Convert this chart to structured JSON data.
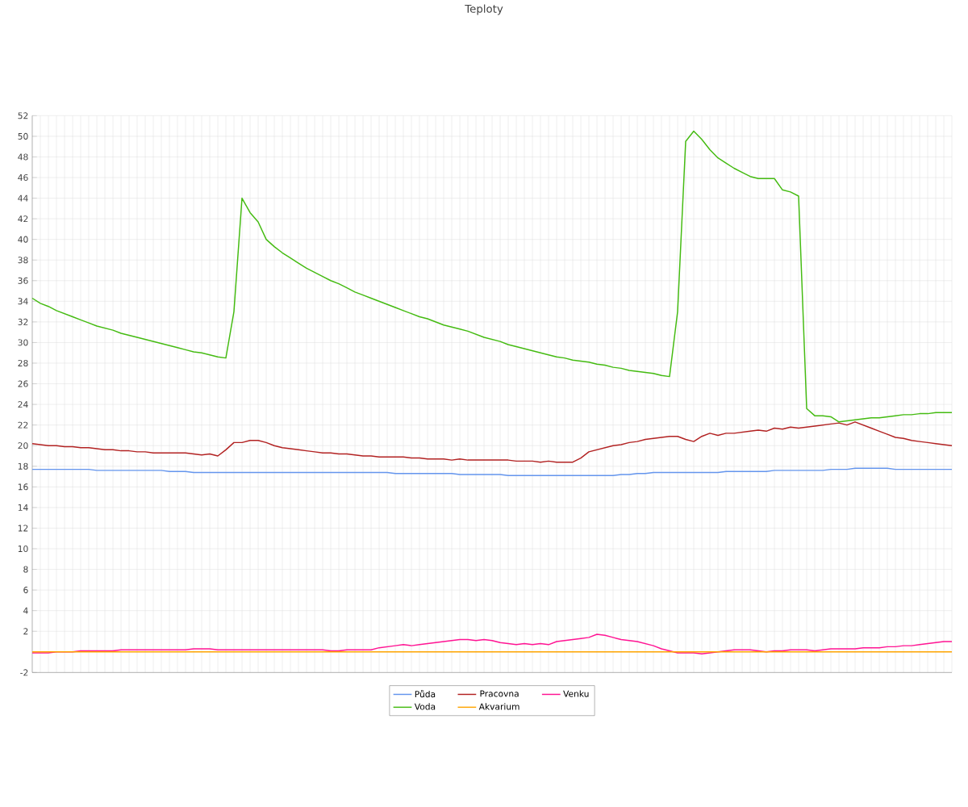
{
  "chart_data": {
    "type": "line",
    "title": "Teploty",
    "categories": [
      null,
      null,
      null,
      null,
      null,
      null,
      null,
      null,
      null,
      null,
      null,
      null,
      null,
      null,
      null,
      null,
      null,
      null,
      null,
      null,
      null,
      null,
      null,
      null,
      null,
      null,
      null,
      null,
      null,
      null,
      null,
      null,
      null,
      null,
      null,
      null,
      null,
      null,
      null,
      null,
      null,
      null,
      null,
      null,
      null,
      null,
      null,
      null,
      null,
      null,
      null,
      null,
      null,
      null,
      null,
      null,
      null,
      null,
      null,
      null,
      null,
      null,
      null,
      null,
      null,
      null,
      null,
      null,
      null,
      null,
      null,
      null,
      null,
      null,
      null,
      null,
      null,
      null,
      null,
      null,
      null,
      null,
      null,
      null,
      null,
      null,
      null,
      null,
      null,
      null,
      null,
      null,
      null,
      null,
      null,
      null,
      null,
      null,
      null,
      null,
      null,
      null,
      null,
      null,
      null,
      null,
      null,
      null,
      null,
      null,
      null,
      null,
      null,
      null,
      null
    ],
    "ylim": [
      -2,
      52
    ],
    "yticks": [
      -2,
      {
        "value": 0,
        "label": null
      },
      2,
      4,
      6,
      8,
      10,
      12,
      14,
      16,
      18,
      20,
      22,
      24,
      26,
      28,
      30,
      32,
      34,
      36,
      38,
      40,
      42,
      44,
      46,
      48,
      50,
      52
    ],
    "grid": true,
    "legend": "bottom",
    "series": [
      {
        "name": "Půda",
        "color": "#6495ed",
        "values": [
          17.7,
          17.7,
          17.7,
          17.7,
          17.7,
          17.7,
          17.7,
          17.7,
          17.6,
          17.6,
          17.6,
          17.6,
          17.6,
          17.6,
          17.6,
          17.6,
          17.6,
          17.5,
          17.5,
          17.5,
          17.4,
          17.4,
          17.4,
          17.4,
          17.4,
          17.4,
          17.4,
          17.4,
          17.4,
          17.4,
          17.4,
          17.4,
          17.4,
          17.4,
          17.4,
          17.4,
          17.4,
          17.4,
          17.4,
          17.4,
          17.4,
          17.4,
          17.4,
          17.4,
          17.4,
          17.3,
          17.3,
          17.3,
          17.3,
          17.3,
          17.3,
          17.3,
          17.3,
          17.2,
          17.2,
          17.2,
          17.2,
          17.2,
          17.2,
          17.1,
          17.1,
          17.1,
          17.1,
          17.1,
          17.1,
          17.1,
          17.1,
          17.1,
          17.1,
          17.1,
          17.1,
          17.1,
          17.1,
          17.2,
          17.2,
          17.3,
          17.3,
          17.4,
          17.4,
          17.4,
          17.4,
          17.4,
          17.4,
          17.4,
          17.4,
          17.4,
          17.5,
          17.5,
          17.5,
          17.5,
          17.5,
          17.5,
          17.6,
          17.6,
          17.6,
          17.6,
          17.6,
          17.6,
          17.6,
          17.7,
          17.7,
          17.7,
          17.8,
          17.8,
          17.8,
          17.8,
          17.8,
          17.7,
          17.7,
          17.7,
          17.7,
          17.7,
          17.7,
          17.7,
          17.7
        ]
      },
      {
        "name": "Pracovna",
        "color": "#b22222",
        "values": [
          20.2,
          20.1,
          20.0,
          20.0,
          19.9,
          19.9,
          19.8,
          19.8,
          19.7,
          19.6,
          19.6,
          19.5,
          19.5,
          19.4,
          19.4,
          19.3,
          19.3,
          19.3,
          19.3,
          19.3,
          19.2,
          19.1,
          19.2,
          19.0,
          19.6,
          20.3,
          20.3,
          20.5,
          20.5,
          20.3,
          20.0,
          19.8,
          19.7,
          19.6,
          19.5,
          19.4,
          19.3,
          19.3,
          19.2,
          19.2,
          19.1,
          19.0,
          19.0,
          18.9,
          18.9,
          18.9,
          18.9,
          18.8,
          18.8,
          18.7,
          18.7,
          18.7,
          18.6,
          18.7,
          18.6,
          18.6,
          18.6,
          18.6,
          18.6,
          18.6,
          18.5,
          18.5,
          18.5,
          18.4,
          18.5,
          18.4,
          18.4,
          18.4,
          18.8,
          19.4,
          19.6,
          19.8,
          20.0,
          20.1,
          20.3,
          20.4,
          20.6,
          20.7,
          20.8,
          20.9,
          20.9,
          20.6,
          20.4,
          20.9,
          21.2,
          21.0,
          21.2,
          21.2,
          21.3,
          21.4,
          21.5,
          21.4,
          21.7,
          21.6,
          21.8,
          21.7,
          21.8,
          21.9,
          22.0,
          22.1,
          22.2,
          22.0,
          22.3,
          22.0,
          21.7,
          21.4,
          21.1,
          20.8,
          20.7,
          20.5,
          20.4,
          20.3,
          20.2,
          20.1,
          20.0
        ]
      },
      {
        "name": "Venku",
        "color": "#ff1493",
        "values": [
          -0.1,
          -0.1,
          -0.1,
          0,
          0,
          0,
          0.1,
          0.1,
          0.1,
          0.1,
          0.1,
          0.2,
          0.2,
          0.2,
          0.2,
          0.2,
          0.2,
          0.2,
          0.2,
          0.2,
          0.3,
          0.3,
          0.3,
          0.2,
          0.2,
          0.2,
          0.2,
          0.2,
          0.2,
          0.2,
          0.2,
          0.2,
          0.2,
          0.2,
          0.2,
          0.2,
          0.2,
          0.1,
          0.1,
          0.2,
          0.2,
          0.2,
          0.2,
          0.4,
          0.5,
          0.6,
          0.7,
          0.6,
          0.7,
          0.8,
          0.9,
          1.0,
          1.1,
          1.2,
          1.2,
          1.1,
          1.2,
          1.1,
          0.9,
          0.8,
          0.7,
          0.8,
          0.7,
          0.8,
          0.7,
          1.0,
          1.1,
          1.2,
          1.3,
          1.4,
          1.7,
          1.6,
          1.4,
          1.2,
          1.1,
          1.0,
          0.8,
          0.6,
          0.3,
          0.1,
          -0.1,
          -0.1,
          -0.1,
          -0.2,
          -0.1,
          0.0,
          0.1,
          0.2,
          0.2,
          0.2,
          0.1,
          0.0,
          0.1,
          0.1,
          0.2,
          0.2,
          0.2,
          0.1,
          0.2,
          0.3,
          0.3,
          0.3,
          0.3,
          0.4,
          0.4,
          0.4,
          0.5,
          0.5,
          0.6,
          0.6,
          0.7,
          0.8,
          0.9,
          1.0,
          1.0
        ]
      },
      {
        "name": "Voda",
        "color": "#44bb11",
        "values": [
          34.3,
          33.8,
          33.5,
          33.1,
          32.8,
          32.5,
          32.2,
          31.9,
          31.6,
          31.4,
          31.2,
          30.9,
          30.7,
          30.5,
          30.3,
          30.1,
          29.9,
          29.7,
          29.5,
          29.3,
          29.1,
          29.0,
          28.8,
          28.6,
          28.5,
          33.0,
          44.0,
          42.6,
          41.7,
          40.0,
          39.3,
          38.7,
          38.2,
          37.7,
          37.2,
          36.8,
          36.4,
          36.0,
          35.7,
          35.3,
          34.9,
          34.6,
          34.3,
          34.0,
          33.7,
          33.4,
          33.1,
          32.8,
          32.5,
          32.3,
          32.0,
          31.7,
          31.5,
          31.3,
          31.1,
          30.8,
          30.5,
          30.3,
          30.1,
          29.8,
          29.6,
          29.4,
          29.2,
          29.0,
          28.8,
          28.6,
          28.5,
          28.3,
          28.2,
          28.1,
          27.9,
          27.8,
          27.6,
          27.5,
          27.3,
          27.2,
          27.1,
          27.0,
          26.8,
          26.7,
          33.0,
          49.5,
          50.5,
          49.7,
          48.7,
          47.9,
          47.4,
          46.9,
          46.5,
          46.1,
          45.9,
          45.9,
          45.9,
          44.8,
          44.6,
          44.2,
          23.6,
          22.9,
          22.9,
          22.8,
          22.3,
          22.4,
          22.5,
          22.6,
          22.7,
          22.7,
          22.8,
          22.9,
          23.0,
          23.0,
          23.1,
          23.1,
          23.2,
          23.2,
          23.2
        ]
      },
      {
        "name": "Akvarium",
        "color": "#ffa500",
        "values": [
          0,
          0,
          0,
          0,
          0,
          0,
          0,
          0,
          0,
          0,
          0,
          0,
          0,
          0,
          0,
          0,
          0,
          0,
          0,
          0,
          0,
          0,
          0,
          0,
          0,
          0,
          0,
          0,
          0,
          0,
          0,
          0,
          0,
          0,
          0,
          0,
          0,
          0,
          0,
          0,
          0,
          0,
          0,
          0,
          0,
          0,
          0,
          0,
          0,
          0,
          0,
          0,
          0,
          0,
          0,
          0,
          0,
          0,
          0,
          0,
          0,
          0,
          0,
          0,
          0,
          0,
          0,
          0,
          0,
          0,
          0,
          0,
          0,
          0,
          0,
          0,
          0,
          0,
          0,
          0,
          0,
          0,
          0,
          0,
          0,
          0,
          0,
          0,
          0,
          0,
          0,
          0,
          0,
          0,
          0,
          0,
          0,
          0,
          0,
          0,
          0,
          0,
          0,
          0,
          0,
          0,
          0,
          0,
          0,
          0,
          0,
          0,
          0,
          0,
          0
        ]
      }
    ]
  }
}
